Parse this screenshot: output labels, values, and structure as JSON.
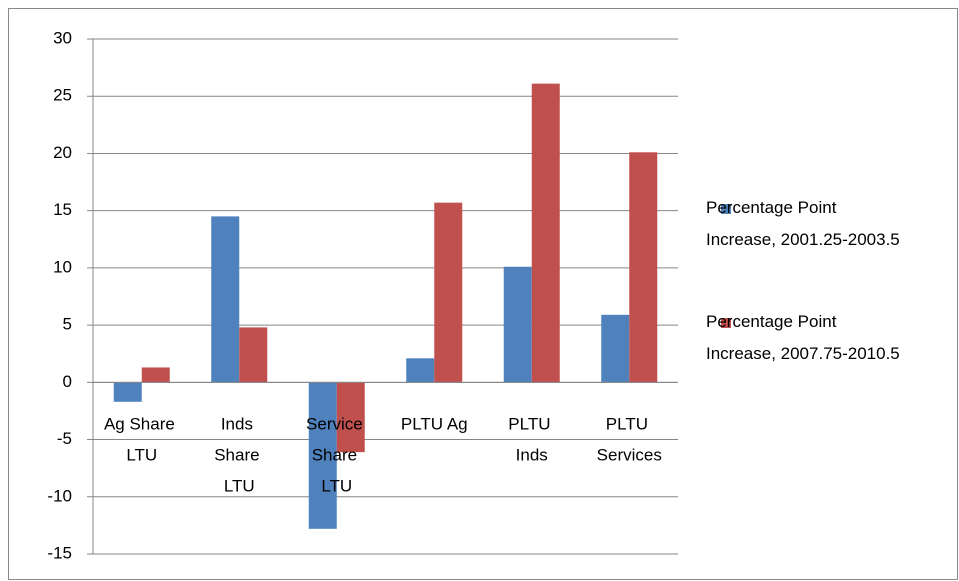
{
  "chart_data": {
    "type": "bar",
    "categories": [
      "Ag Share LTU",
      "Inds Share LTU",
      "Service Share LTU",
      "PLTU Ag",
      "PLTU Inds",
      "PLTU Services"
    ],
    "series": [
      {
        "name": "Percentage Point Increase, 2001.25-2003.5",
        "color": "#4f81bd",
        "values": [
          -1.7,
          14.5,
          -12.8,
          2.1,
          10.1,
          5.9
        ]
      },
      {
        "name": "Percentage Point Increase, 2007.75-2010.5",
        "color": "#c0504d",
        "values": [
          1.3,
          4.8,
          -6.1,
          15.7,
          26.1,
          20.1
        ]
      }
    ],
    "ylim": [
      -15,
      30
    ],
    "yticks": [
      -15,
      -10,
      -5,
      0,
      5,
      10,
      15,
      20,
      25,
      30
    ],
    "grid": true,
    "legend": "right"
  }
}
